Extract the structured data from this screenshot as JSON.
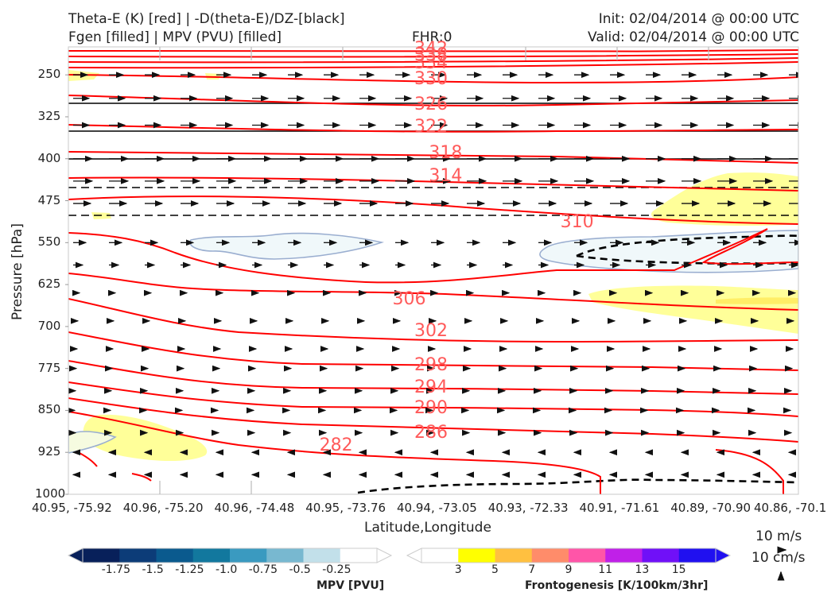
{
  "header": {
    "title_line1": "Theta-E (K) [red] | -D(theta-E)/DZ-[black]",
    "title_line2": "Fgen [filled] | MPV (PVU) [filled]",
    "fhr": "FHR:0",
    "init": "Init: 02/04/2014 @ 00:00 UTC",
    "valid": "Valid: 02/04/2014 @ 00:00 UTC"
  },
  "chart_data": {
    "type": "cross-section",
    "xlabel": "Latitude,Longitude",
    "ylabel": "Pressure [hPa]",
    "x_ticks": [
      "40.95, -75.92",
      "40.96, -75.20",
      "40.96, -74.48",
      "40.95, -73.76",
      "40.94, -73.05",
      "40.93, -72.33",
      "40.91, -71.61",
      "40.89, -70.90",
      "40.86, -70.1"
    ],
    "y_ticks": [
      250,
      325,
      400,
      475,
      550,
      625,
      700,
      775,
      850,
      925,
      1000
    ],
    "ylim": [
      200,
      1000
    ],
    "y_inverted": true,
    "theta_e_contour_labels": [
      {
        "label": "342",
        "x": 0.5,
        "p": 207
      },
      {
        "label": "338",
        "x": 0.5,
        "p": 219
      },
      {
        "label": "334",
        "x": 0.5,
        "p": 233
      },
      {
        "label": "330",
        "x": 0.5,
        "p": 261
      },
      {
        "label": "326",
        "x": 0.5,
        "p": 307
      },
      {
        "label": "322",
        "x": 0.5,
        "p": 347
      },
      {
        "label": "318",
        "x": 0.52,
        "p": 393
      },
      {
        "label": "314",
        "x": 0.52,
        "p": 435
      },
      {
        "label": "310",
        "x": 0.7,
        "p": 517
      },
      {
        "label": "306",
        "x": 0.47,
        "p": 655
      },
      {
        "label": "302",
        "x": 0.5,
        "p": 711
      },
      {
        "label": "298",
        "x": 0.5,
        "p": 772
      },
      {
        "label": "294",
        "x": 0.5,
        "p": 812
      },
      {
        "label": "290",
        "x": 0.5,
        "p": 850
      },
      {
        "label": "286",
        "x": 0.5,
        "p": 893
      },
      {
        "label": "282",
        "x": 0.37,
        "p": 916
      }
    ],
    "wind_reference": [
      "10 m/s",
      "10 cm/s"
    ],
    "colorbars": [
      {
        "title": "MPV [PVU]",
        "ticks": [
          "-1.75",
          "-1.5",
          "-1.25",
          "-1.0",
          "-0.75",
          "-0.5",
          "-0.25"
        ],
        "colors": [
          "#08205a",
          "#0c3c78",
          "#0a5a8e",
          "#12789e",
          "#3a9ac0",
          "#78b8d0",
          "#c2e0ea",
          "#ffffff"
        ]
      },
      {
        "title": "Frontogenesis [K/100km/3hr]",
        "ticks": [
          "3",
          "5",
          "7",
          "9",
          "11",
          "13",
          "15"
        ],
        "colors": [
          "#ffffff",
          "#ffff00",
          "#ffc040",
          "#ff8c6a",
          "#ff55a8",
          "#c020e8",
          "#7010f8",
          "#2010f0"
        ]
      }
    ],
    "colors": {
      "theta_e": "#ff0000",
      "theta_e_label": "#ff5a5a",
      "ddz": "#000000",
      "fgen_light": "#ffff99",
      "mpv_light": "#f0f8fa"
    }
  }
}
